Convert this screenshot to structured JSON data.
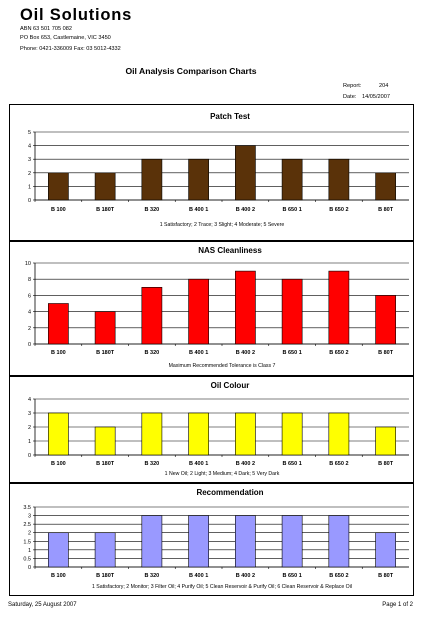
{
  "header": {
    "company": "Oil Solutions",
    "abn": "ABN 63 501 705 082",
    "address": "PO Box 653, Castlemaine, VIC  3450",
    "phone": "Phone:  0421-336009  Fax: 03  5012-4332",
    "report_title": "Oil Analysis Comparison Charts",
    "report_label": "Report:",
    "report_number": "204",
    "date_label": "Date:",
    "date_value": "14/05/2007"
  },
  "footer": {
    "date": "Saturday, 25 August 2007",
    "page": "Page 1 of 2"
  },
  "chart_data": [
    {
      "type": "bar",
      "title": "Patch Test",
      "categories": [
        "B 100",
        "B 180T",
        "B 320",
        "B 400 1",
        "B 400 2",
        "B 650 1",
        "B 650 2",
        "B 80T"
      ],
      "values": [
        2,
        2,
        3,
        3,
        4,
        3,
        3,
        2
      ],
      "ylim": [
        0,
        5
      ],
      "yticks": [
        "0",
        "1",
        "2",
        "3",
        "4",
        "5"
      ],
      "note": "1 Satisfactory;  2 Trace;  3 Slight;  4 Moderate;  5 Severe",
      "color": "#5a3209",
      "grid": true
    },
    {
      "type": "bar",
      "title": "NAS Cleanliness",
      "categories": [
        "B 100",
        "B 180T",
        "B 320",
        "B 400 1",
        "B 400 2",
        "B 650 1",
        "B 650 2",
        "B 80T"
      ],
      "values": [
        5,
        4,
        7,
        8,
        9,
        8,
        9,
        6
      ],
      "ylim": [
        0,
        10
      ],
      "yticks": [
        "0",
        "2",
        "4",
        "6",
        "8",
        "10"
      ],
      "note": "Maximum Recommended Tolerance is Class 7",
      "color": "#ff0000",
      "grid": true
    },
    {
      "type": "bar",
      "title": "Oil Colour",
      "categories": [
        "B 100",
        "B 180T",
        "B 320",
        "B 400 1",
        "B 400 2",
        "B 650 1",
        "B 650 2",
        "B 80T"
      ],
      "values": [
        3,
        2,
        3,
        3,
        3,
        3,
        3,
        2
      ],
      "ylim": [
        0,
        4
      ],
      "yticks": [
        "0",
        "1",
        "2",
        "3",
        "4"
      ],
      "note": "1 New Oil;  2 Light;  3 Medium;  4 Dark;  5 Very Dark",
      "color": "#ffff00",
      "grid": true
    },
    {
      "type": "bar",
      "title": "Recommendation",
      "categories": [
        "B 100",
        "B 180T",
        "B 320",
        "B 400 1",
        "B 400 2",
        "B 650 1",
        "B 650 2",
        "B 80T"
      ],
      "values": [
        2,
        2,
        3,
        3,
        3,
        3,
        3,
        2
      ],
      "ylim": [
        0,
        3.5
      ],
      "yticks": [
        "0",
        "0.5",
        "1",
        "1.5",
        "2",
        "2.5",
        "3",
        "3.5"
      ],
      "note": "1 Satisfactory;  2 Monitor;  3 Filter Oil;  4 Purify Oil; 5 Clean Reservoir & Purify Oil; 6 Clean Reservoir & Replace Oil",
      "color": "#9999ff",
      "grid": true
    }
  ]
}
